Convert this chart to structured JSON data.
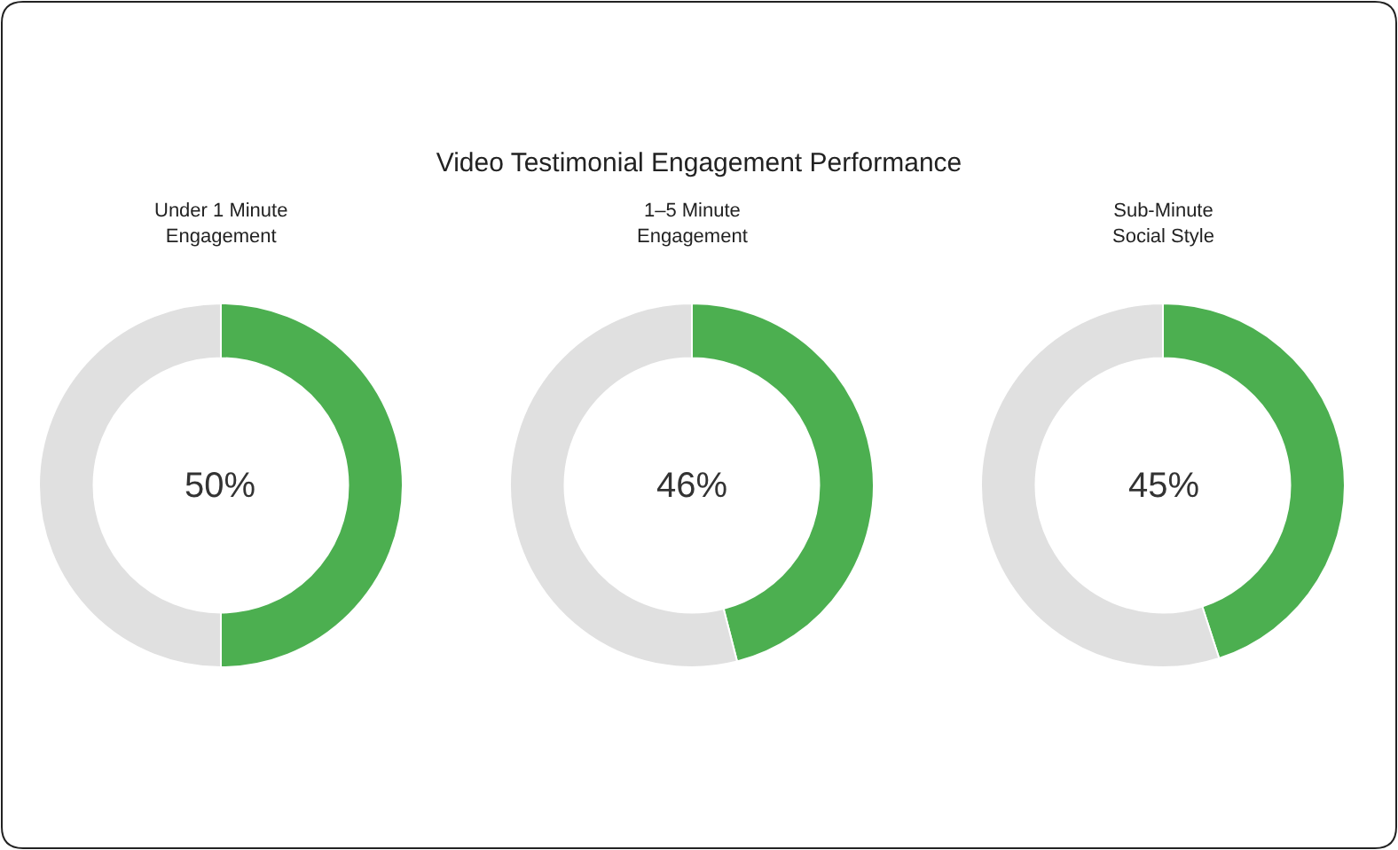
{
  "chart_data": [
    {
      "type": "other",
      "title": "Video Testimonial Engagement Performance"
    },
    {
      "type": "donut",
      "title": "Under 1 Minute\nEngagement",
      "categories": [
        null,
        null
      ],
      "values": [
        50,
        50
      ],
      "colors": [
        "#4caf50",
        "#e0e0e0"
      ],
      "annotations": [
        "50%"
      ]
    },
    {
      "type": "donut",
      "title": "1–5 Minute\nEngagement",
      "categories": [
        null,
        null
      ],
      "values": [
        46,
        54
      ],
      "colors": [
        "#4caf50",
        "#e0e0e0"
      ],
      "annotations": [
        "46%"
      ]
    },
    {
      "type": "donut",
      "title": "Sub-Minute\nSocial Style",
      "categories": [
        null,
        null
      ],
      "values": [
        45,
        55
      ],
      "colors": [
        "#4caf50",
        "#e0e0e0"
      ],
      "annotations": [
        "45%"
      ]
    }
  ]
}
